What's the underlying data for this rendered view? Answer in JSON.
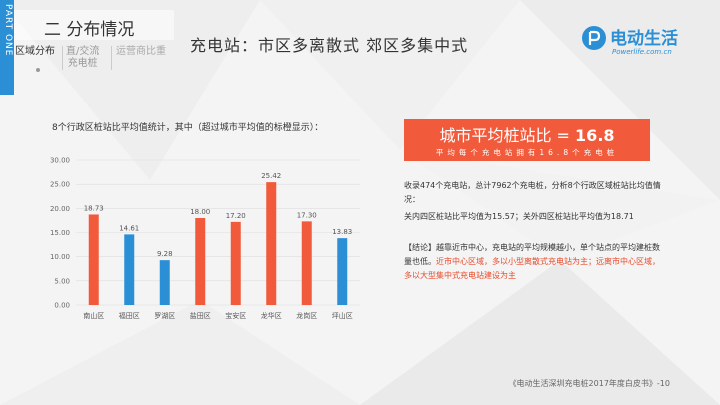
{
  "sidebar": {
    "part_label": "PART ONE"
  },
  "section": {
    "title": "二 分布情况"
  },
  "subnav": {
    "active": "区域分布",
    "mid_line1": "直/交流",
    "mid_line2": "充电桩",
    "right": "运营商比重"
  },
  "main_title": "充电站：市区多离散式  郊区多集中式",
  "logo": {
    "name": "电动生活",
    "url": "Powerlife.com.cn"
  },
  "chart_intro": "8个行政区桩站比平均值统计，其中（超过城市平均值的标橙显示）：",
  "chart_data": {
    "type": "bar",
    "categories": [
      "南山区",
      "福田区",
      "罗湖区",
      "盐田区",
      "宝安区",
      "龙华区",
      "龙岗区",
      "坪山区"
    ],
    "values": [
      18.73,
      14.61,
      9.28,
      18.0,
      17.2,
      25.42,
      17.3,
      13.83
    ],
    "value_labels": [
      "18.73",
      "14.61",
      "9.28",
      "18.00",
      "17.20",
      "25.42",
      "17.30",
      "13.83"
    ],
    "bar_colors": [
      "#f15a3a",
      "#2b8fd6",
      "#2b8fd6",
      "#f15a3a",
      "#f15a3a",
      "#f15a3a",
      "#f15a3a",
      "#2b8fd6"
    ],
    "yticks": [
      "0.00",
      "5.00",
      "10.00",
      "15.00",
      "20.00",
      "25.00",
      "30.00"
    ],
    "ylim": [
      0,
      30
    ],
    "grid": true
  },
  "banner": {
    "title_prefix": "城市平均桩站比 = ",
    "title_value": "16.8",
    "subtitle": "平均每个充电站拥有16.8个充电桩"
  },
  "text": {
    "p1": "收录474个充电站，总计7962个充电桩，分析8个行政区域桩站比均值情况：",
    "p2": "关内四区桩站比平均值为15.57；关外四区桩站比平均值为18.71",
    "conclusion_prefix": "【结论】越靠近市中心，充电站的平均规模越小，单个站点的平均建桩数量也低。",
    "conclusion_red": "近市中心区域，多以小型离散式充电站为主；远离市中心区域，多以大型集中式充电站建设为主"
  },
  "footer": "《电动生活深圳充电桩2017年度白皮书》-10",
  "colors": {
    "accent_orange": "#f15a3a",
    "accent_blue": "#2b8fd6"
  }
}
